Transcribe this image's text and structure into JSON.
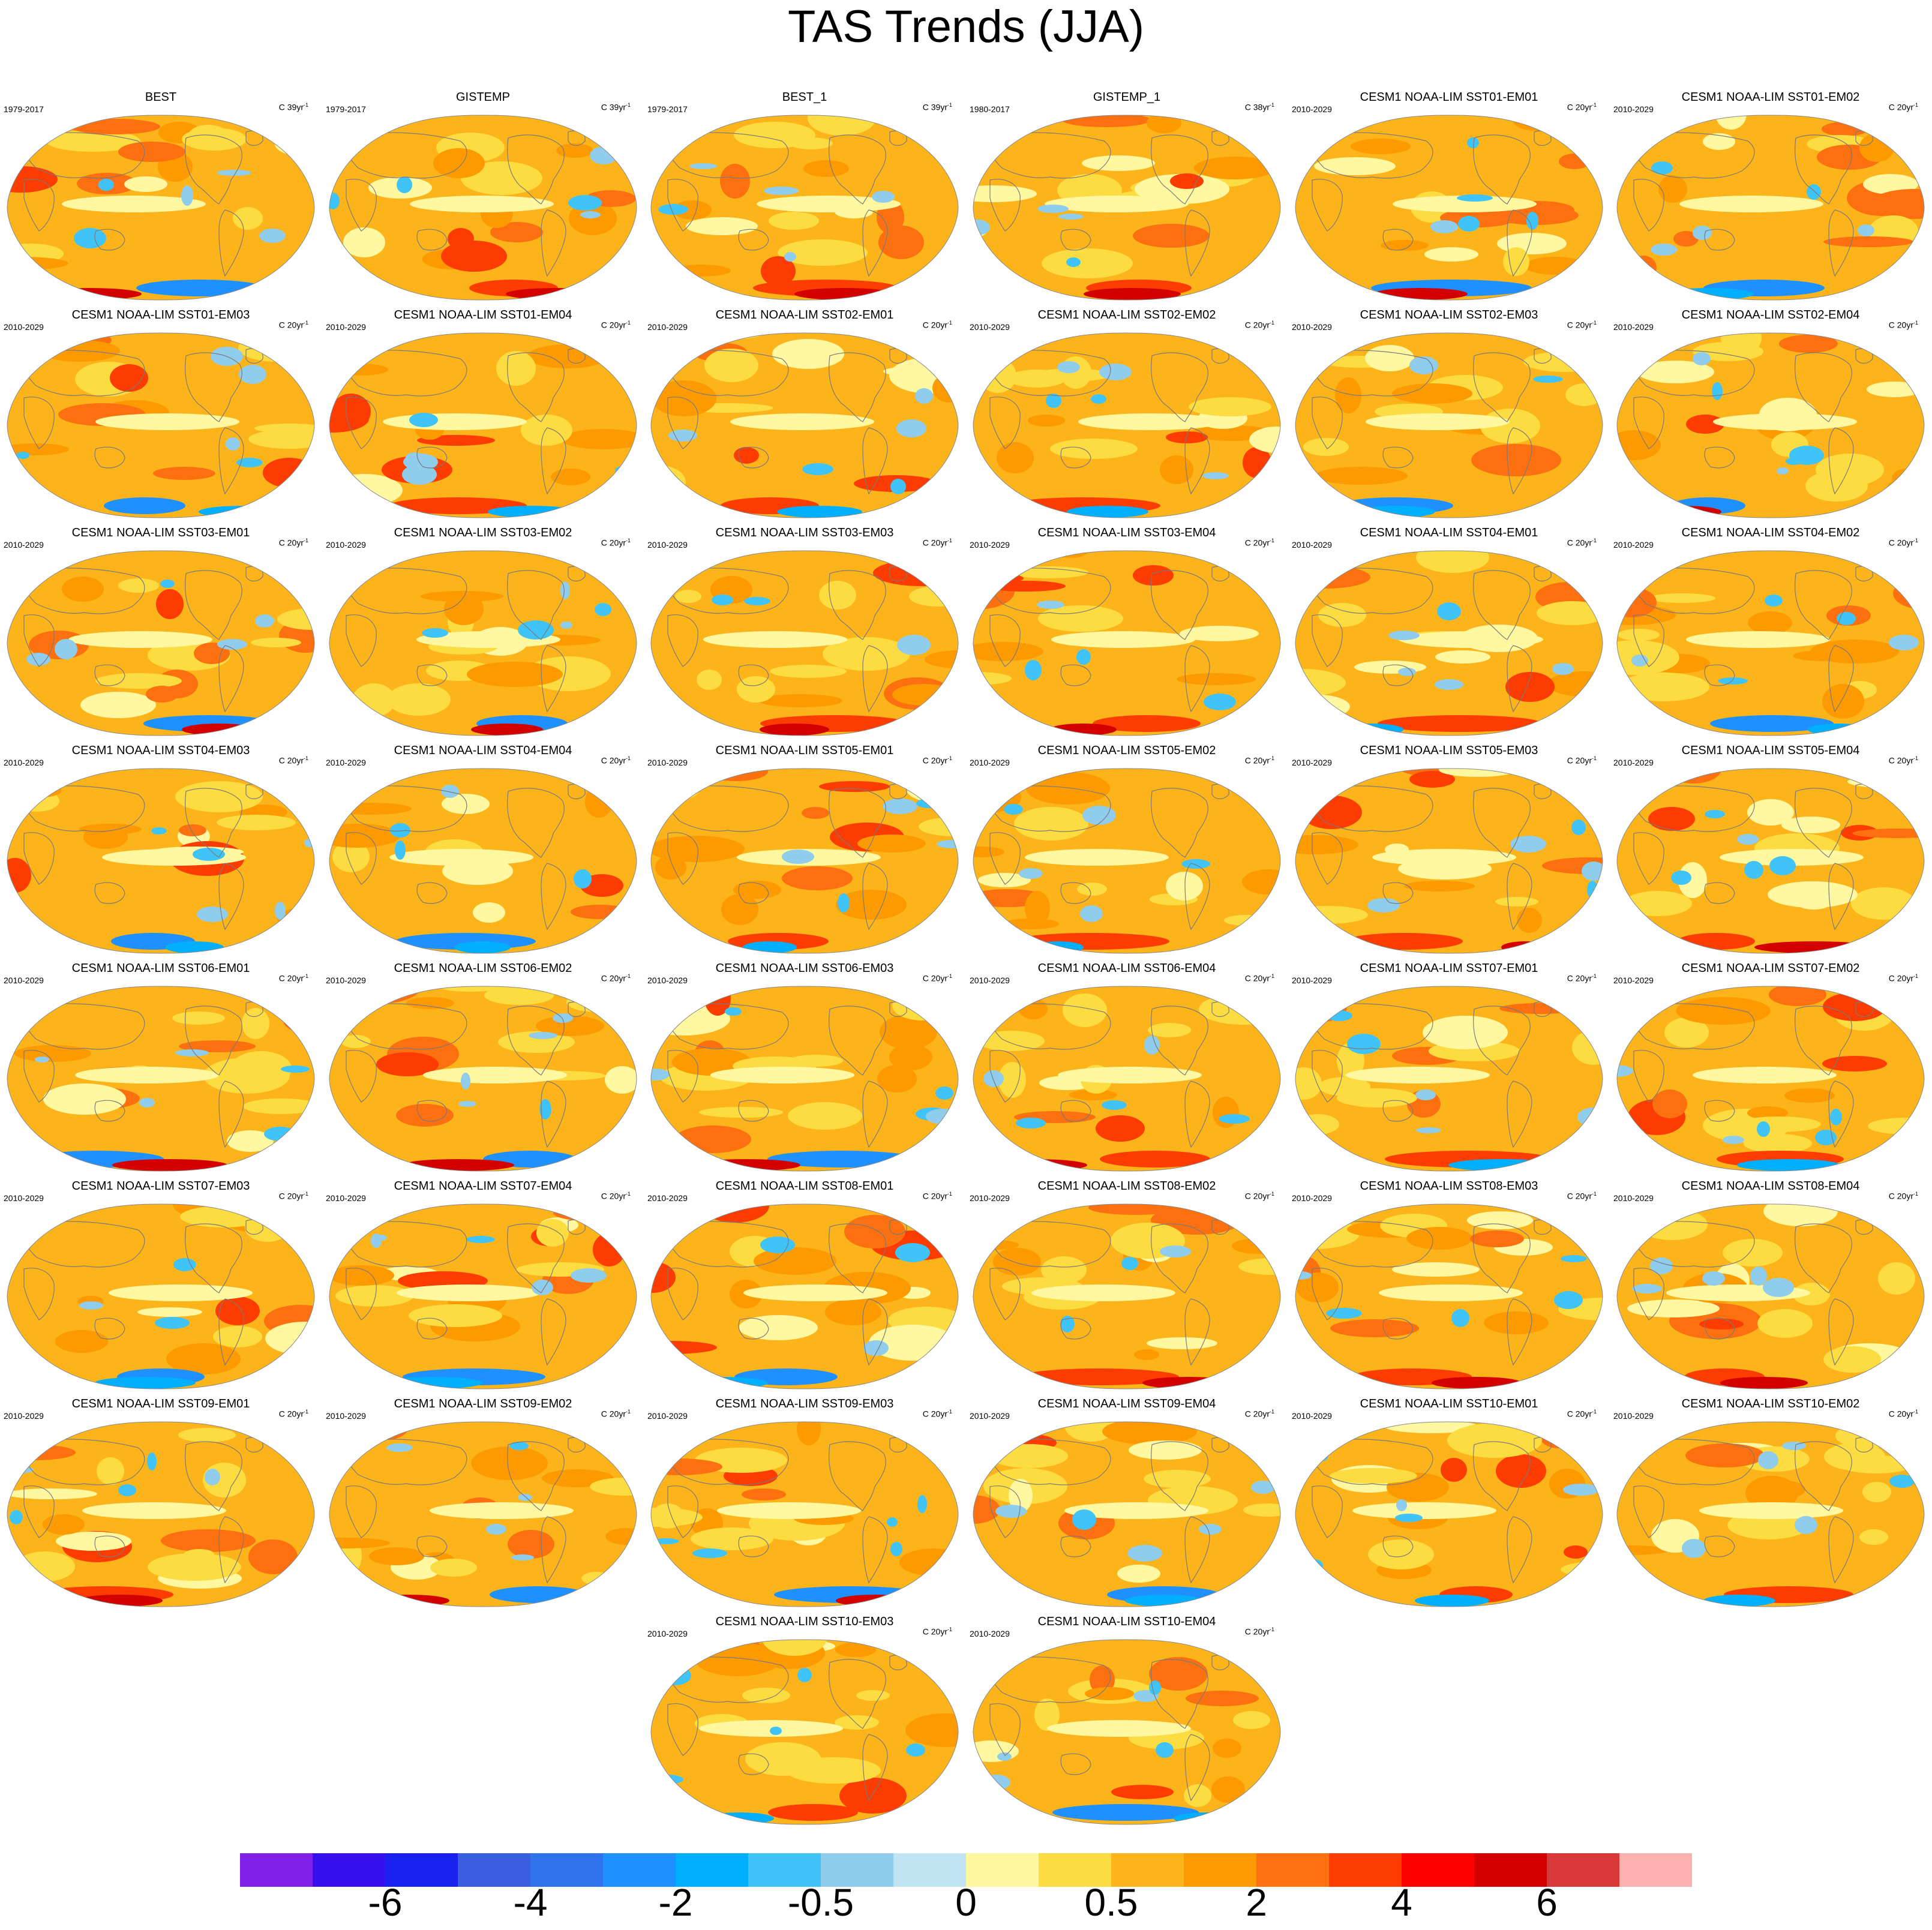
{
  "title": "TAS Trends (JJA)",
  "panels": [
    {
      "title": "BEST",
      "period": "1979-2017",
      "units": "C 39yr",
      "units_exp": "-1"
    },
    {
      "title": "GISTEMP",
      "period": "1979-2017",
      "units": "C 39yr",
      "units_exp": "-1"
    },
    {
      "title": "BEST_1",
      "period": "1979-2017",
      "units": "C 39yr",
      "units_exp": "-1"
    },
    {
      "title": "GISTEMP_1",
      "period": "1980-2017",
      "units": "C 38yr",
      "units_exp": "-1"
    },
    {
      "title": "CESM1 NOAA-LIM SST01-EM01",
      "period": "2010-2029",
      "units": "C 20yr",
      "units_exp": "-1"
    },
    {
      "title": "CESM1 NOAA-LIM SST01-EM02",
      "period": "2010-2029",
      "units": "C 20yr",
      "units_exp": "-1"
    },
    {
      "title": "CESM1 NOAA-LIM SST01-EM03",
      "period": "2010-2029",
      "units": "C 20yr",
      "units_exp": "-1"
    },
    {
      "title": "CESM1 NOAA-LIM SST01-EM04",
      "period": "2010-2029",
      "units": "C 20yr",
      "units_exp": "-1"
    },
    {
      "title": "CESM1 NOAA-LIM SST02-EM01",
      "period": "2010-2029",
      "units": "C 20yr",
      "units_exp": "-1"
    },
    {
      "title": "CESM1 NOAA-LIM SST02-EM02",
      "period": "2010-2029",
      "units": "C 20yr",
      "units_exp": "-1"
    },
    {
      "title": "CESM1 NOAA-LIM SST02-EM03",
      "period": "2010-2029",
      "units": "C 20yr",
      "units_exp": "-1"
    },
    {
      "title": "CESM1 NOAA-LIM SST02-EM04",
      "period": "2010-2029",
      "units": "C 20yr",
      "units_exp": "-1"
    },
    {
      "title": "CESM1 NOAA-LIM SST03-EM01",
      "period": "2010-2029",
      "units": "C 20yr",
      "units_exp": "-1"
    },
    {
      "title": "CESM1 NOAA-LIM SST03-EM02",
      "period": "2010-2029",
      "units": "C 20yr",
      "units_exp": "-1"
    },
    {
      "title": "CESM1 NOAA-LIM SST03-EM03",
      "period": "2010-2029",
      "units": "C 20yr",
      "units_exp": "-1"
    },
    {
      "title": "CESM1 NOAA-LIM SST03-EM04",
      "period": "2010-2029",
      "units": "C 20yr",
      "units_exp": "-1"
    },
    {
      "title": "CESM1 NOAA-LIM SST04-EM01",
      "period": "2010-2029",
      "units": "C 20yr",
      "units_exp": "-1"
    },
    {
      "title": "CESM1 NOAA-LIM SST04-EM02",
      "period": "2010-2029",
      "units": "C 20yr",
      "units_exp": "-1"
    },
    {
      "title": "CESM1 NOAA-LIM SST04-EM03",
      "period": "2010-2029",
      "units": "C 20yr",
      "units_exp": "-1"
    },
    {
      "title": "CESM1 NOAA-LIM SST04-EM04",
      "period": "2010-2029",
      "units": "C 20yr",
      "units_exp": "-1"
    },
    {
      "title": "CESM1 NOAA-LIM SST05-EM01",
      "period": "2010-2029",
      "units": "C 20yr",
      "units_exp": "-1"
    },
    {
      "title": "CESM1 NOAA-LIM SST05-EM02",
      "period": "2010-2029",
      "units": "C 20yr",
      "units_exp": "-1"
    },
    {
      "title": "CESM1 NOAA-LIM SST05-EM03",
      "period": "2010-2029",
      "units": "C 20yr",
      "units_exp": "-1"
    },
    {
      "title": "CESM1 NOAA-LIM SST05-EM04",
      "period": "2010-2029",
      "units": "C 20yr",
      "units_exp": "-1"
    },
    {
      "title": "CESM1 NOAA-LIM SST06-EM01",
      "period": "2010-2029",
      "units": "C 20yr",
      "units_exp": "-1"
    },
    {
      "title": "CESM1 NOAA-LIM SST06-EM02",
      "period": "2010-2029",
      "units": "C 20yr",
      "units_exp": "-1"
    },
    {
      "title": "CESM1 NOAA-LIM SST06-EM03",
      "period": "2010-2029",
      "units": "C 20yr",
      "units_exp": "-1"
    },
    {
      "title": "CESM1 NOAA-LIM SST06-EM04",
      "period": "2010-2029",
      "units": "C 20yr",
      "units_exp": "-1"
    },
    {
      "title": "CESM1 NOAA-LIM SST07-EM01",
      "period": "2010-2029",
      "units": "C 20yr",
      "units_exp": "-1"
    },
    {
      "title": "CESM1 NOAA-LIM SST07-EM02",
      "period": "2010-2029",
      "units": "C 20yr",
      "units_exp": "-1"
    },
    {
      "title": "CESM1 NOAA-LIM SST07-EM03",
      "period": "2010-2029",
      "units": "C 20yr",
      "units_exp": "-1"
    },
    {
      "title": "CESM1 NOAA-LIM SST07-EM04",
      "period": "2010-2029",
      "units": "C 20yr",
      "units_exp": "-1"
    },
    {
      "title": "CESM1 NOAA-LIM SST08-EM01",
      "period": "2010-2029",
      "units": "C 20yr",
      "units_exp": "-1"
    },
    {
      "title": "CESM1 NOAA-LIM SST08-EM02",
      "period": "2010-2029",
      "units": "C 20yr",
      "units_exp": "-1"
    },
    {
      "title": "CESM1 NOAA-LIM SST08-EM03",
      "period": "2010-2029",
      "units": "C 20yr",
      "units_exp": "-1"
    },
    {
      "title": "CESM1 NOAA-LIM SST08-EM04",
      "period": "2010-2029",
      "units": "C 20yr",
      "units_exp": "-1"
    },
    {
      "title": "CESM1 NOAA-LIM SST09-EM01",
      "period": "2010-2029",
      "units": "C 20yr",
      "units_exp": "-1"
    },
    {
      "title": "CESM1 NOAA-LIM SST09-EM02",
      "period": "2010-2029",
      "units": "C 20yr",
      "units_exp": "-1"
    },
    {
      "title": "CESM1 NOAA-LIM SST09-EM03",
      "period": "2010-2029",
      "units": "C 20yr",
      "units_exp": "-1"
    },
    {
      "title": "CESM1 NOAA-LIM SST09-EM04",
      "period": "2010-2029",
      "units": "C 20yr",
      "units_exp": "-1"
    },
    {
      "title": "CESM1 NOAA-LIM SST10-EM01",
      "period": "2010-2029",
      "units": "C 20yr",
      "units_exp": "-1"
    },
    {
      "title": "CESM1 NOAA-LIM SST10-EM02",
      "period": "2010-2029",
      "units": "C 20yr",
      "units_exp": "-1"
    },
    {
      "title": "CESM1 NOAA-LIM SST10-EM03",
      "period": "2010-2029",
      "units": "C 20yr",
      "units_exp": "-1"
    },
    {
      "title": "CESM1 NOAA-LIM SST10-EM04",
      "period": "2010-2029",
      "units": "C 20yr",
      "units_exp": "-1"
    }
  ],
  "colorbar": {
    "colors": [
      "#8020e8",
      "#3810f0",
      "#1a20f0",
      "#3a5ee0",
      "#2e72ec",
      "#1e90ff",
      "#00b0ff",
      "#40c4f8",
      "#90ccec",
      "#c0e4f4",
      "#fff8a0",
      "#fcdc40",
      "#fcb41a",
      "#fc9a00",
      "#fc7010",
      "#fc3c00",
      "#fc0000",
      "#d40000",
      "#d83838",
      "#fcb0b0"
    ],
    "labels": [
      "-6",
      "-4",
      "-2",
      "-0.5",
      "0",
      "0.5",
      "2",
      "4",
      "6"
    ],
    "label_boundaries": [
      2,
      4,
      6,
      8,
      10,
      12,
      14,
      16,
      18
    ]
  },
  "colors": {
    "ocean_base": "#fcb41a",
    "land_outline": "#7a7a7a",
    "map_border": "#888888"
  }
}
